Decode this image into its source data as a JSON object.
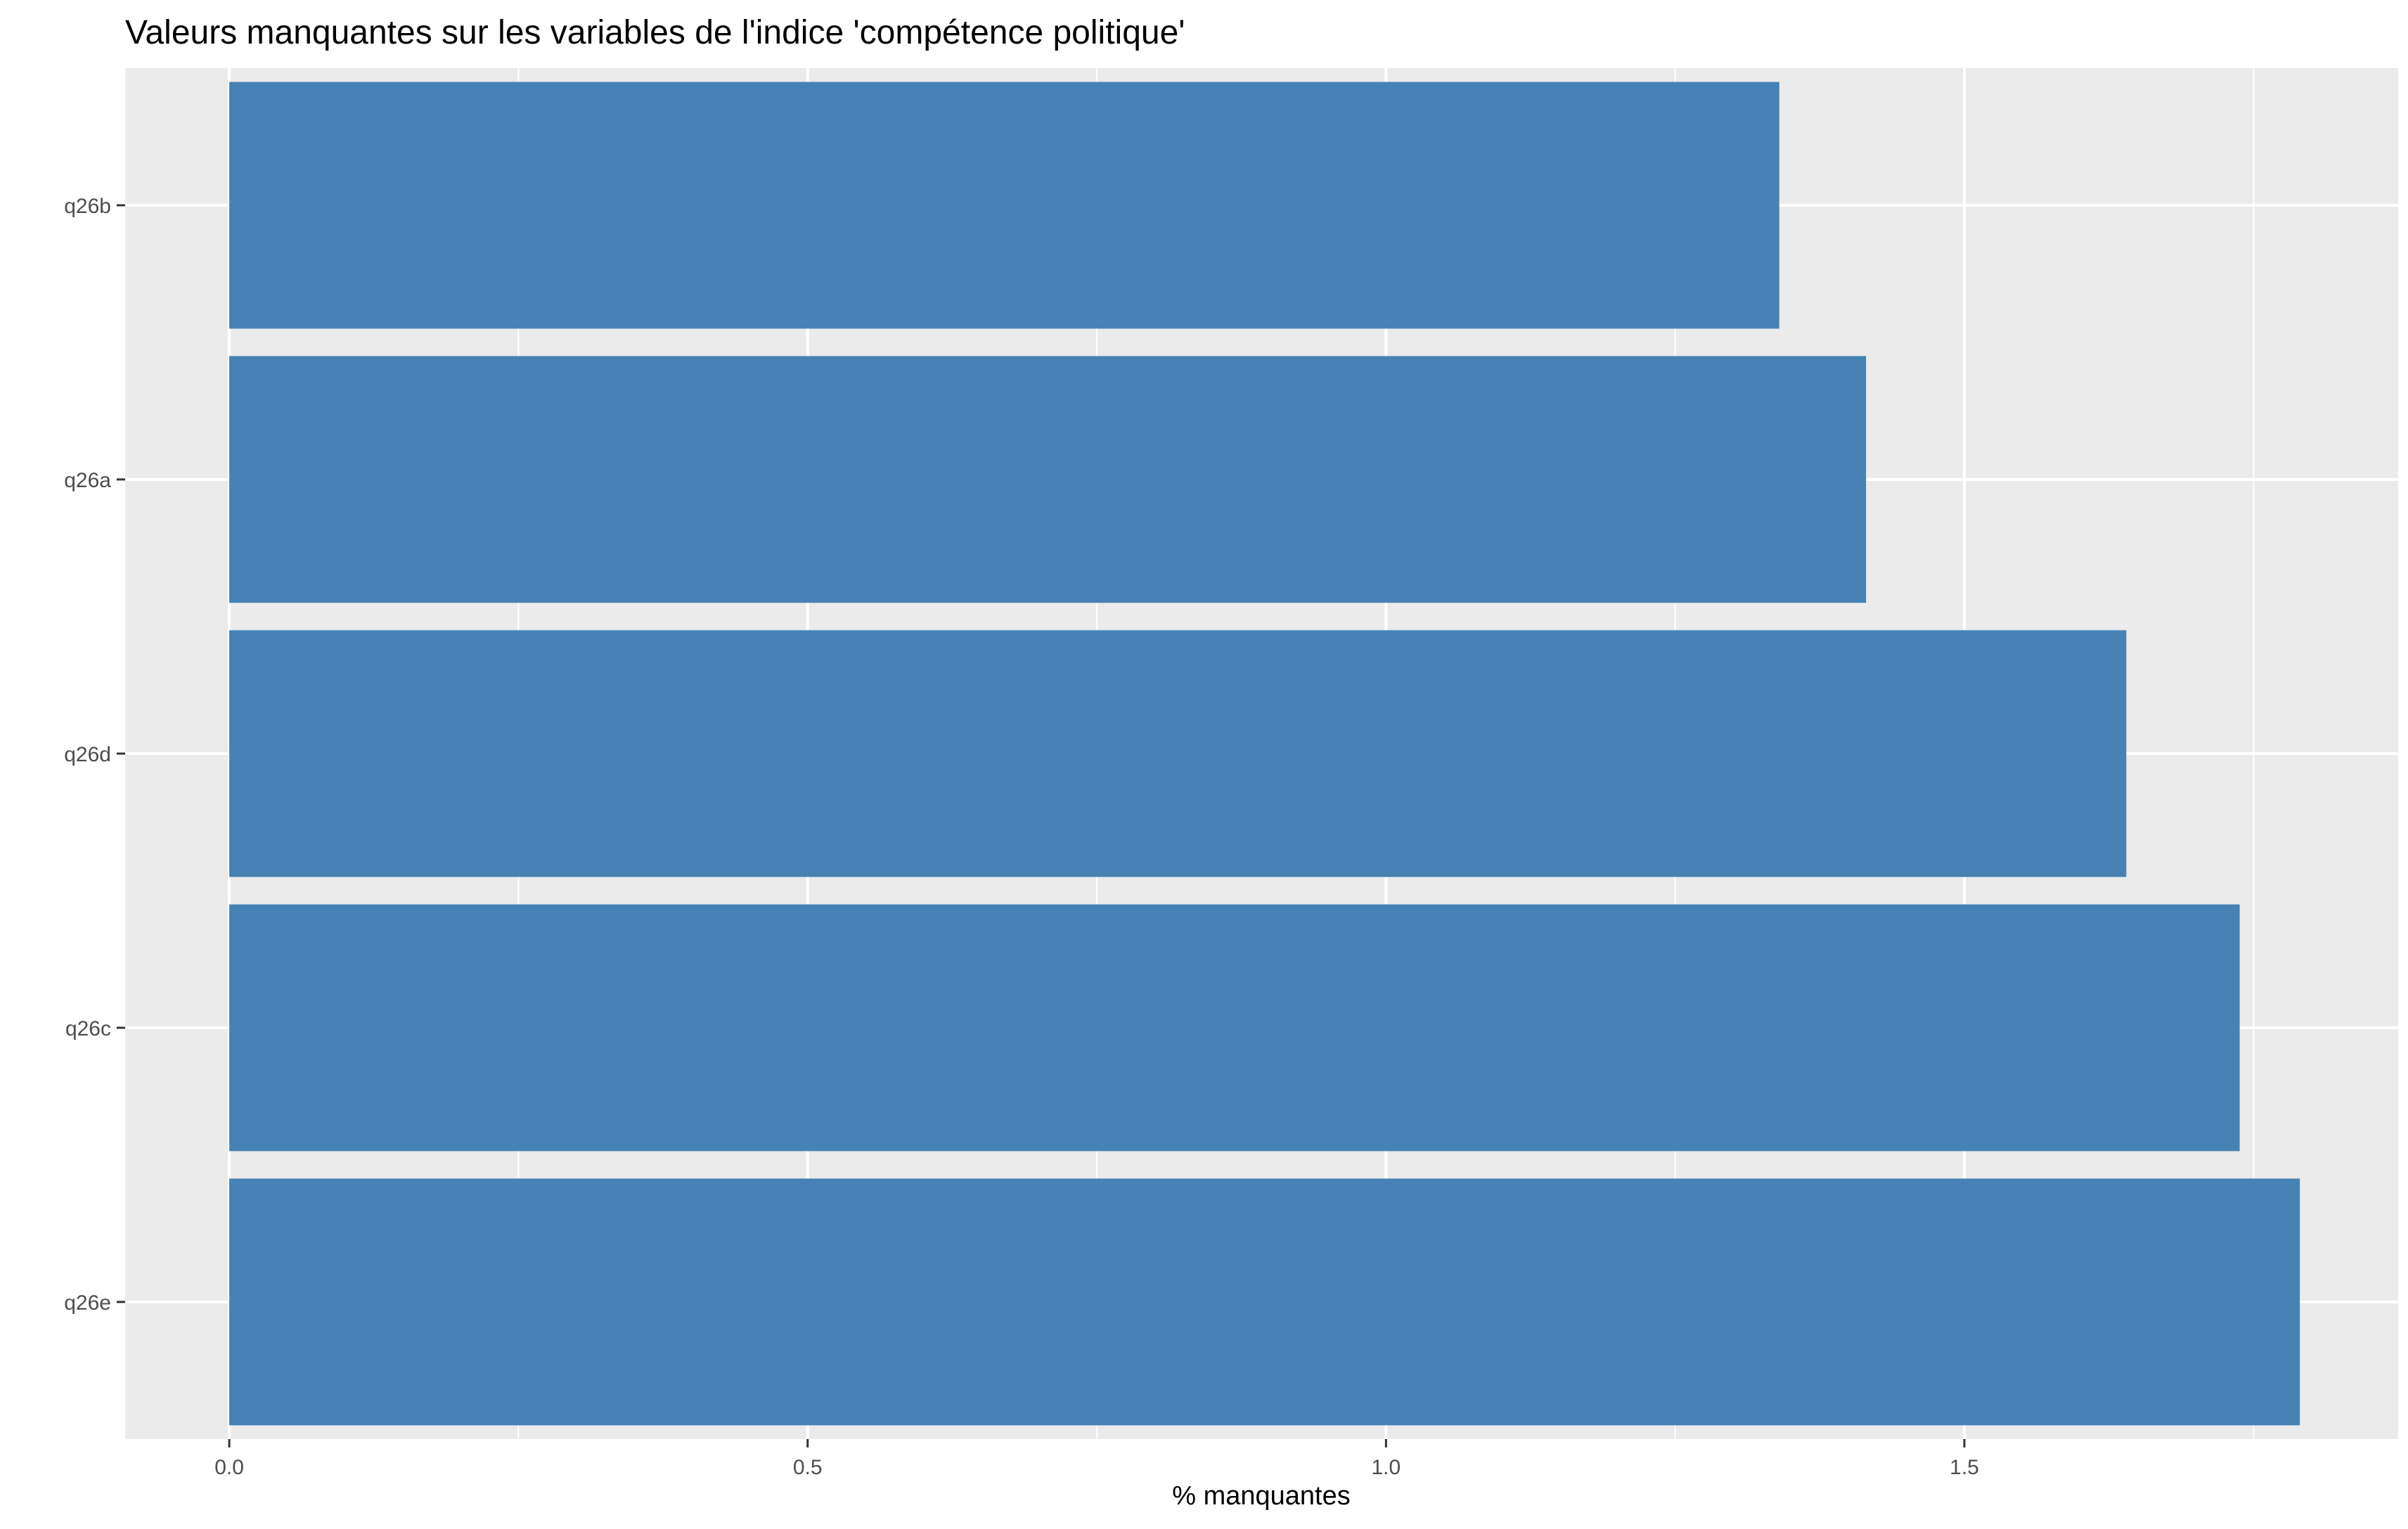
{
  "chart_data": {
    "type": "bar",
    "orientation": "horizontal",
    "title": "Valeurs manquantes sur les variables de l'indice 'compétence politique'",
    "xlabel": "% manquantes",
    "ylabel": "",
    "categories": [
      "q26b",
      "q26a",
      "q26d",
      "q26c",
      "q26e"
    ],
    "values": [
      1.34,
      1.415,
      1.64,
      1.738,
      1.79
    ],
    "xlim": [
      -0.09,
      1.875
    ],
    "xticks": [
      0.0,
      0.5,
      1.0,
      1.5
    ],
    "xtick_labels": [
      "0.0",
      "0.5",
      "1.0",
      "1.5"
    ],
    "grid": true,
    "legend": "none",
    "colors": {
      "bar": "#4682b4",
      "panel": "#ebebeb",
      "grid": "#ffffff",
      "tick": "#333333"
    }
  }
}
